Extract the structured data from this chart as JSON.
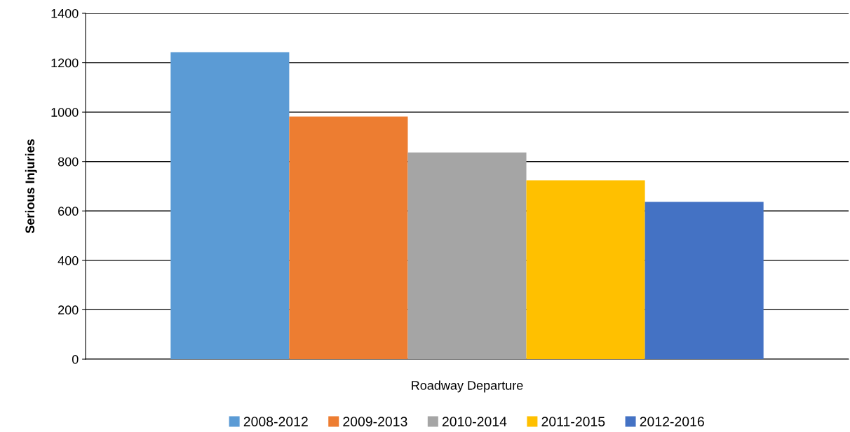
{
  "chart_data": {
    "type": "bar",
    "ylabel": "Serious Injuries",
    "categories": [
      "Roadway Departure"
    ],
    "series": [
      {
        "name": "2008-2012",
        "color": "#5b9bd5",
        "values": [
          1243
        ]
      },
      {
        "name": "2009-2013",
        "color": "#ed7d31",
        "values": [
          982
        ]
      },
      {
        "name": "2010-2014",
        "color": "#a5a5a5",
        "values": [
          837
        ]
      },
      {
        "name": "2011-2015",
        "color": "#ffc000",
        "values": [
          724
        ]
      },
      {
        "name": "2012-2016",
        "color": "#4472c4",
        "values": [
          637
        ]
      }
    ],
    "ylim": [
      0,
      1400
    ],
    "yticks": [
      0,
      200,
      400,
      600,
      800,
      1000,
      1200,
      1400
    ],
    "grid": "y",
    "legend": "bottom"
  }
}
